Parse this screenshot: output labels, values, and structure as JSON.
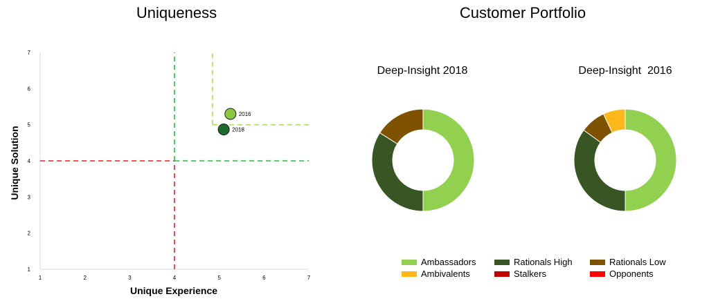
{
  "titles": {
    "left": "Uniqueness",
    "right": "Customer Portfolio"
  },
  "chart_data": [
    {
      "type": "scatter",
      "title": "Uniqueness",
      "xlabel": "Unique Experience",
      "ylabel": "Unique Solution",
      "xlim": [
        1,
        7
      ],
      "ylim": [
        1,
        7
      ],
      "xticks": [
        "1",
        "2",
        "3",
        "4",
        "5",
        "6",
        "7"
      ],
      "yticks": [
        "1",
        "2",
        "3",
        "4",
        "5",
        "6",
        "7"
      ],
      "grid": false,
      "points": [
        {
          "label": "2016",
          "x": 5.25,
          "y": 5.3,
          "color": "#8DC63F"
        },
        {
          "label": "2018",
          "x": 5.1,
          "y": 4.87,
          "color": "#1E6B2E"
        }
      ],
      "reference_lines": [
        {
          "orientation": "vertical",
          "value": 4,
          "from": 1,
          "to": 4,
          "color": "#E02020"
        },
        {
          "orientation": "horizontal",
          "value": 4,
          "from": 1,
          "to": 4,
          "color": "#E02020"
        },
        {
          "orientation": "vertical",
          "value": 4,
          "from": 4,
          "to": 7,
          "color": "#2DB84D"
        },
        {
          "orientation": "horizontal",
          "value": 4,
          "from": 4,
          "to": 7,
          "color": "#2DB84D"
        },
        {
          "orientation": "vertical",
          "value": 4.85,
          "from": 5,
          "to": 7,
          "color": "#A6E05A"
        },
        {
          "orientation": "horizontal",
          "value": 5,
          "from": 4.85,
          "to": 7,
          "color": "#A6E05A"
        }
      ]
    },
    {
      "type": "pie",
      "title": "Deep-Insight 2018",
      "donut": true,
      "slices": [
        {
          "name": "Ambassadors",
          "value": 50,
          "color": "#92D050"
        },
        {
          "name": "Rationals High",
          "value": 34,
          "color": "#375623"
        },
        {
          "name": "Rationals Low",
          "value": 16,
          "color": "#7F5200"
        }
      ]
    },
    {
      "type": "pie",
      "title": "Deep-Insight  2016",
      "donut": true,
      "slices": [
        {
          "name": "Ambassadors",
          "value": 50,
          "color": "#92D050"
        },
        {
          "name": "Rationals High",
          "value": 35,
          "color": "#375623"
        },
        {
          "name": "Rationals Low",
          "value": 8,
          "color": "#7F5200"
        },
        {
          "name": "Ambivalents",
          "value": 7,
          "color": "#FFB81C"
        }
      ]
    }
  ],
  "legend": [
    {
      "name": "Ambassadors",
      "color": "#92D050"
    },
    {
      "name": "Rationals High",
      "color": "#375623"
    },
    {
      "name": "Rationals Low",
      "color": "#7F5200"
    },
    {
      "name": "Ambivalents",
      "color": "#FFB81C"
    },
    {
      "name": "Stalkers",
      "color": "#C00000"
    },
    {
      "name": "Opponents",
      "color": "#FF0000"
    }
  ]
}
